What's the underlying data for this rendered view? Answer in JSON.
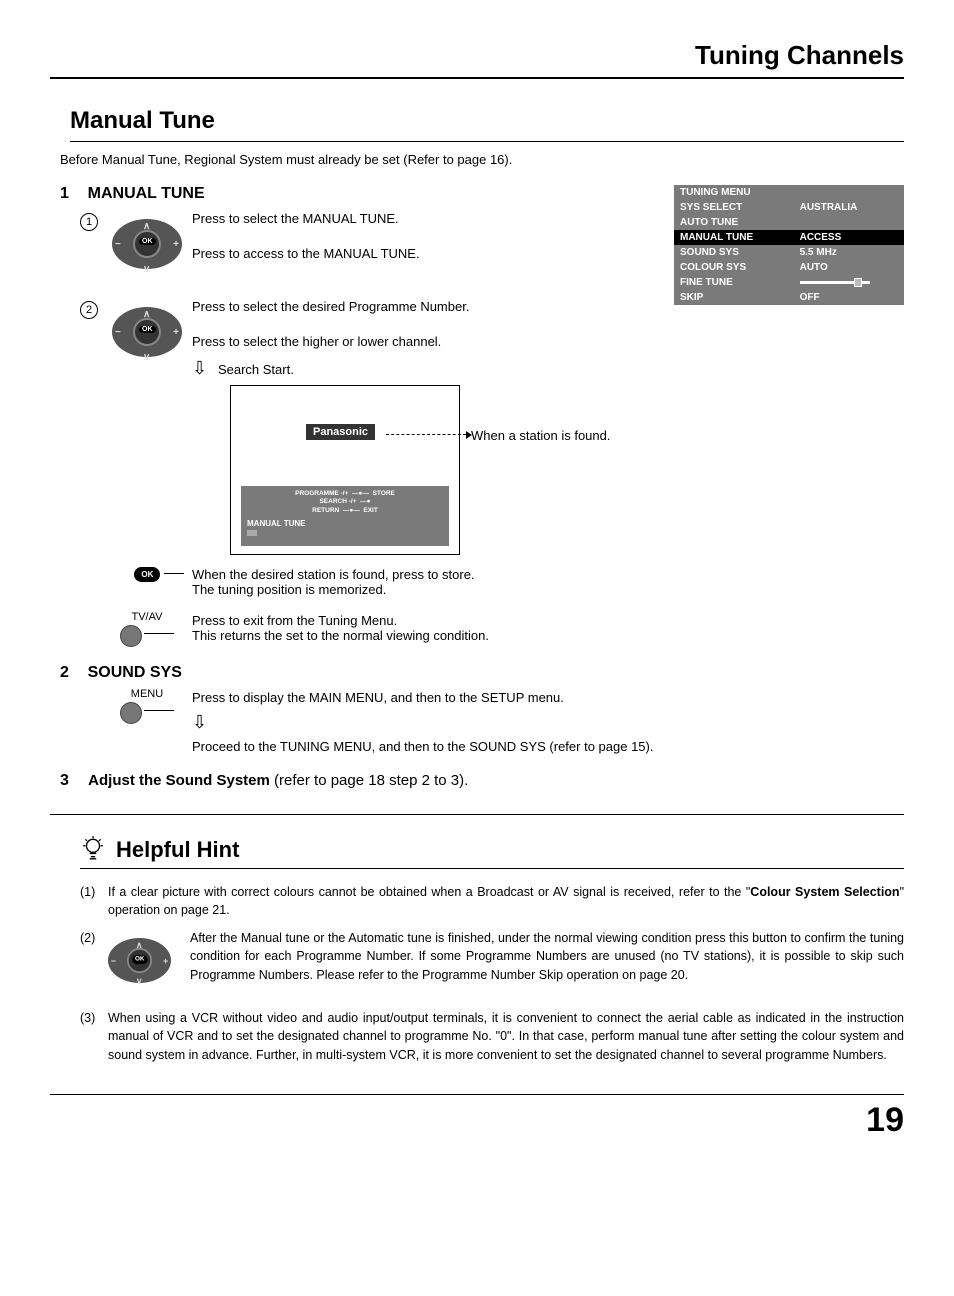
{
  "header": {
    "title": "Tuning Channels"
  },
  "section": {
    "title": "Manual Tune"
  },
  "intro": "Before Manual Tune, Regional System must already be set (Refer to page 16).",
  "step1": {
    "num": "1",
    "title": "MANUAL TUNE",
    "sub1": {
      "circ": "1",
      "line1": "Press to select the MANUAL TUNE.",
      "line2": "Press to access to the MANUAL TUNE."
    },
    "sub2": {
      "circ": "2",
      "line1": "Press to select the desired Programme Number.",
      "line2": "Press to select the higher or lower channel.",
      "search": "Search Start.",
      "station": "When a station is found.",
      "tvlogo": "Panasonic",
      "osd": {
        "l1": "PROGRAMME  -/+",
        "l1r": "STORE",
        "l2": "SEARCH  -/+",
        "l3": "RETURN",
        "l3r": "EXIT",
        "title": "MANUAL TUNE"
      },
      "okbtn": "OK",
      "store1": "When the desired station is found, press to store.",
      "store2": "The tuning position is memorized.",
      "tvav": "TV/AV",
      "exit1": "Press to exit from the Tuning Menu.",
      "exit2": "This returns the set to the normal viewing condition."
    }
  },
  "menu": {
    "header": "TUNING MENU",
    "rows": [
      {
        "k": "SYS SELECT",
        "v": "AUSTRALIA"
      },
      {
        "k": "AUTO  TUNE",
        "v": ""
      },
      {
        "k": "MANUAL  TUNE",
        "v": "ACCESS",
        "hl": true
      },
      {
        "k": "SOUND  SYS",
        "v": "5.5 MHz"
      },
      {
        "k": "COLOUR  SYS",
        "v": "AUTO"
      },
      {
        "k": "FINE  TUNE",
        "v": "",
        "slider": true
      },
      {
        "k": "SKIP",
        "v": "OFF"
      }
    ]
  },
  "step2": {
    "num": "2",
    "title": "SOUND SYS",
    "menubtn": "MENU",
    "line1": "Press to display the MAIN MENU, and then to the SETUP menu.",
    "line2": "Proceed to the TUNING MENU, and then to the SOUND SYS (refer to page 15)."
  },
  "step3": {
    "num": "3",
    "title": "Adjust the Sound System",
    "rest": " (refer to page 18 step 2 to 3)."
  },
  "hint": {
    "title": "Helpful Hint",
    "i1n": "(1)",
    "i1a": "If a clear picture with correct colours cannot be obtained when a Broadcast or AV signal is received, refer to the \"",
    "i1b": "Colour System Selection",
    "i1c": "\" operation on page 21.",
    "i2n": "(2)",
    "i2": "After the Manual tune or the Automatic tune is finished, under the normal viewing condition press this button to confirm the tuning condition for each Programme Number. If some Programme Numbers are unused (no TV stations), it is possible to skip such Programme Numbers. Please refer to the Programme Number Skip operation on page 20.",
    "i3n": "(3)",
    "i3": "When using a VCR without video and audio input/output terminals, it is convenient to connect the aerial cable as indicated in the instruction manual of VCR and to set the designated channel to programme No. \"0\". In that case, perform manual tune after setting the colour system and sound system in advance. Further, in multi-system VCR, it is more convenient to set the designated channel to several programme Numbers."
  },
  "page": "19",
  "colors": {
    "menu_bg": "#7a7a7a",
    "menu_fg": "#ffffff",
    "highlight_bg": "#000000"
  }
}
